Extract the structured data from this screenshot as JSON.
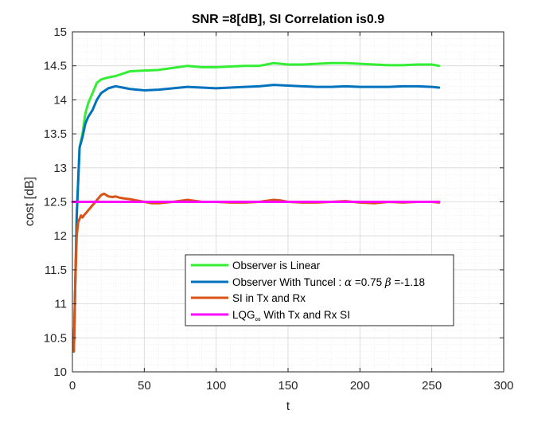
{
  "chart_data": {
    "type": "line",
    "title": "SNR =8[dB], SI Correlation is0.9",
    "xlabel": "t",
    "ylabel": "cost [dB]",
    "xlim": [
      0,
      300
    ],
    "ylim": [
      10,
      15
    ],
    "x_ticks": [
      "0",
      "50",
      "100",
      "150",
      "200",
      "250",
      "300"
    ],
    "y_ticks": [
      "10",
      "10.5",
      "11",
      "11.5",
      "12",
      "12.5",
      "13",
      "13.5",
      "14",
      "14.5",
      "15"
    ],
    "grid": "major and minor",
    "legend_position": "lower-center",
    "series": [
      {
        "name": "Observer is Linear",
        "color": "#33ee33",
        "x": [
          1,
          3,
          5,
          7,
          9,
          11,
          14,
          17,
          20,
          25,
          30,
          40,
          50,
          60,
          70,
          80,
          90,
          100,
          110,
          120,
          130,
          140,
          150,
          160,
          170,
          180,
          190,
          200,
          210,
          220,
          230,
          240,
          250,
          255
        ],
        "y": [
          10.3,
          12.3,
          13.3,
          13.5,
          13.8,
          13.95,
          14.1,
          14.25,
          14.3,
          14.33,
          14.35,
          14.42,
          14.43,
          14.44,
          14.47,
          14.5,
          14.48,
          14.48,
          14.49,
          14.5,
          14.5,
          14.54,
          14.52,
          14.52,
          14.53,
          14.54,
          14.54,
          14.53,
          14.52,
          14.51,
          14.51,
          14.52,
          14.52,
          14.5
        ]
      },
      {
        "name": "Observer With Tuncel : α =0.75 β =-1.18",
        "color": "#0072bd",
        "x": [
          1,
          3,
          5,
          7,
          9,
          11,
          14,
          17,
          20,
          25,
          30,
          35,
          40,
          45,
          50,
          60,
          70,
          80,
          90,
          100,
          110,
          120,
          130,
          140,
          150,
          160,
          170,
          180,
          190,
          200,
          210,
          220,
          230,
          240,
          250,
          255
        ],
        "y": [
          10.3,
          12.3,
          13.3,
          13.45,
          13.65,
          13.75,
          13.85,
          14.0,
          14.1,
          14.17,
          14.2,
          14.18,
          14.16,
          14.15,
          14.14,
          14.15,
          14.17,
          14.19,
          14.18,
          14.17,
          14.18,
          14.19,
          14.2,
          14.22,
          14.21,
          14.2,
          14.19,
          14.19,
          14.2,
          14.19,
          14.19,
          14.19,
          14.2,
          14.2,
          14.19,
          14.18
        ]
      },
      {
        "name": "SI in Tx and Rx",
        "color": "#d95319",
        "x": [
          1,
          2,
          3,
          4,
          5,
          6,
          7,
          8,
          10,
          12,
          14,
          16,
          18,
          20,
          22,
          25,
          28,
          30,
          33,
          36,
          40,
          45,
          50,
          55,
          60,
          70,
          80,
          90,
          100,
          110,
          120,
          130,
          140,
          145,
          150,
          160,
          170,
          180,
          190,
          200,
          210,
          220,
          230,
          240,
          250,
          255
        ],
        "y": [
          10.3,
          11.3,
          12.0,
          12.2,
          12.25,
          12.3,
          12.27,
          12.3,
          12.35,
          12.4,
          12.45,
          12.5,
          12.55,
          12.6,
          12.62,
          12.58,
          12.57,
          12.58,
          12.56,
          12.55,
          12.54,
          12.52,
          12.5,
          12.48,
          12.48,
          12.5,
          12.53,
          12.5,
          12.5,
          12.49,
          12.49,
          12.5,
          12.53,
          12.52,
          12.5,
          12.49,
          12.49,
          12.5,
          12.51,
          12.49,
          12.48,
          12.5,
          12.49,
          12.5,
          12.5,
          12.49
        ]
      },
      {
        "name": "LQG∞ With Tx and Rx SI",
        "color": "#ff00ff",
        "x": [
          0,
          255
        ],
        "y": [
          12.5,
          12.5
        ]
      }
    ]
  },
  "legend_labels": {
    "s1": "Observer is Linear",
    "s2_prefix": "Observer With Tuncel : ",
    "s2_alpha": "α",
    "s2_alpha_val": " =0.75 ",
    "s2_beta": "β",
    "s2_beta_val": " =-1.18",
    "s3": "SI in Tx and Rx",
    "s4_prefix": "LQG",
    "s4_sub": "∞",
    "s4_suffix": " With Tx and Rx SI"
  }
}
